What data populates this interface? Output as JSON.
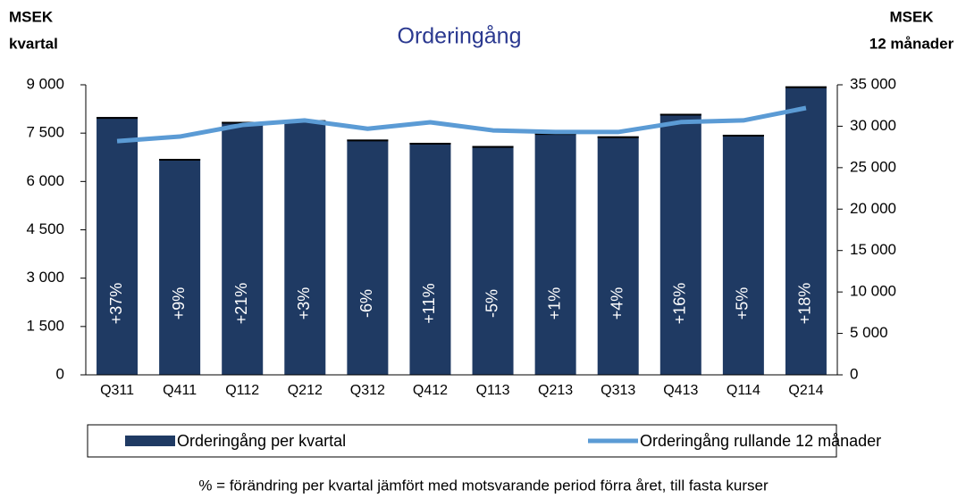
{
  "chart_data": {
    "type": "bar_line",
    "title": "Orderingång",
    "ylabel_lines": [
      "MSEK",
      "kvartal"
    ],
    "y2label_lines": [
      "MSEK",
      "12 månader"
    ],
    "categories": [
      "Q311",
      "Q411",
      "Q112",
      "Q212",
      "Q312",
      "Q412",
      "Q113",
      "Q213",
      "Q313",
      "Q413",
      "Q114",
      "Q214"
    ],
    "series": [
      {
        "name": "Orderingång per kvartal",
        "color": "#1f3a63",
        "kind": "bar",
        "values": [
          8000,
          6700,
          7850,
          7900,
          7300,
          7200,
          7100,
          7500,
          7400,
          8100,
          7450,
          8950
        ],
        "annotations": [
          "+37%",
          "+9%",
          "+21%",
          "+3%",
          "-6%",
          "+11%",
          "-5%",
          "+1%",
          "+4%",
          "+16%",
          "+5%",
          "+18%"
        ]
      },
      {
        "name": "Orderingång rullande 12 månader",
        "color": "#5b9bd5",
        "kind": "line",
        "axis": "y2",
        "values": [
          28200,
          28750,
          30150,
          30700,
          29700,
          30480,
          29500,
          29300,
          29300,
          30500,
          30700,
          32200
        ]
      }
    ],
    "ylim": [
      0,
      9000
    ],
    "yticks": [
      0,
      {
        "value": 1500,
        "label": "1 500"
      },
      {
        "value": 3000,
        "label": "3 000"
      },
      {
        "value": 4500,
        "label": "4 500"
      },
      {
        "value": 6000,
        "label": "6 000"
      },
      {
        "value": 7500,
        "label": "7 500"
      },
      {
        "value": 9000,
        "label": "9 000"
      }
    ],
    "y2lim": [
      0,
      35000
    ],
    "y2ticks": [
      0,
      {
        "value": 5000,
        "label": "5 000"
      },
      {
        "value": 10000,
        "label": "10 000"
      },
      {
        "value": 15000,
        "label": "15 000"
      },
      {
        "value": 20000,
        "label": "20 000"
      },
      {
        "value": 25000,
        "label": "25 000"
      },
      {
        "value": 30000,
        "label": "30 000"
      },
      {
        "value": 35000,
        "label": "35 000"
      }
    ],
    "footnote": "% = förändring per kvartal jämfört med motsvarande period förra året, till fasta kurser"
  }
}
